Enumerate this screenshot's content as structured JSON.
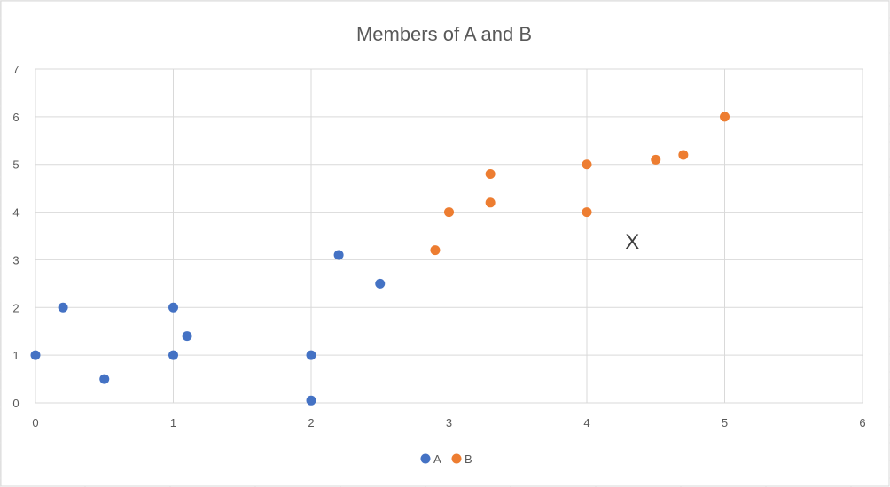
{
  "chart_data": {
    "type": "scatter",
    "title": "Members of A and B",
    "xlabel": "",
    "ylabel": "",
    "xlim": [
      0,
      6
    ],
    "ylim": [
      0,
      7
    ],
    "x_ticks": [
      "0",
      "1",
      "2",
      "3",
      "4",
      "5",
      "6"
    ],
    "y_ticks": [
      "0",
      "1",
      "2",
      "3",
      "4",
      "5",
      "6",
      "7"
    ],
    "grid": true,
    "legend_position": "bottom",
    "series": [
      {
        "name": "A",
        "color": "#4472C4",
        "points": [
          {
            "x": 0,
            "y": 1
          },
          {
            "x": 0.2,
            "y": 2
          },
          {
            "x": 0.5,
            "y": 0.5
          },
          {
            "x": 1,
            "y": 2
          },
          {
            "x": 1,
            "y": 1
          },
          {
            "x": 1.1,
            "y": 1.4
          },
          {
            "x": 2,
            "y": 1
          },
          {
            "x": 2,
            "y": 0.05
          },
          {
            "x": 2.2,
            "y": 3.1
          },
          {
            "x": 2.5,
            "y": 2.5
          }
        ]
      },
      {
        "name": "B",
        "color": "#ED7D31",
        "points": [
          {
            "x": 2.9,
            "y": 3.2
          },
          {
            "x": 3,
            "y": 4
          },
          {
            "x": 3.3,
            "y": 4.8
          },
          {
            "x": 3.3,
            "y": 4.2
          },
          {
            "x": 4,
            "y": 5
          },
          {
            "x": 4,
            "y": 4
          },
          {
            "x": 4.5,
            "y": 5.1
          },
          {
            "x": 4.7,
            "y": 5.2
          },
          {
            "x": 5,
            "y": 6
          }
        ]
      }
    ],
    "annotations": [
      {
        "text": "X",
        "x": 4.33,
        "y": 3.4
      }
    ]
  }
}
